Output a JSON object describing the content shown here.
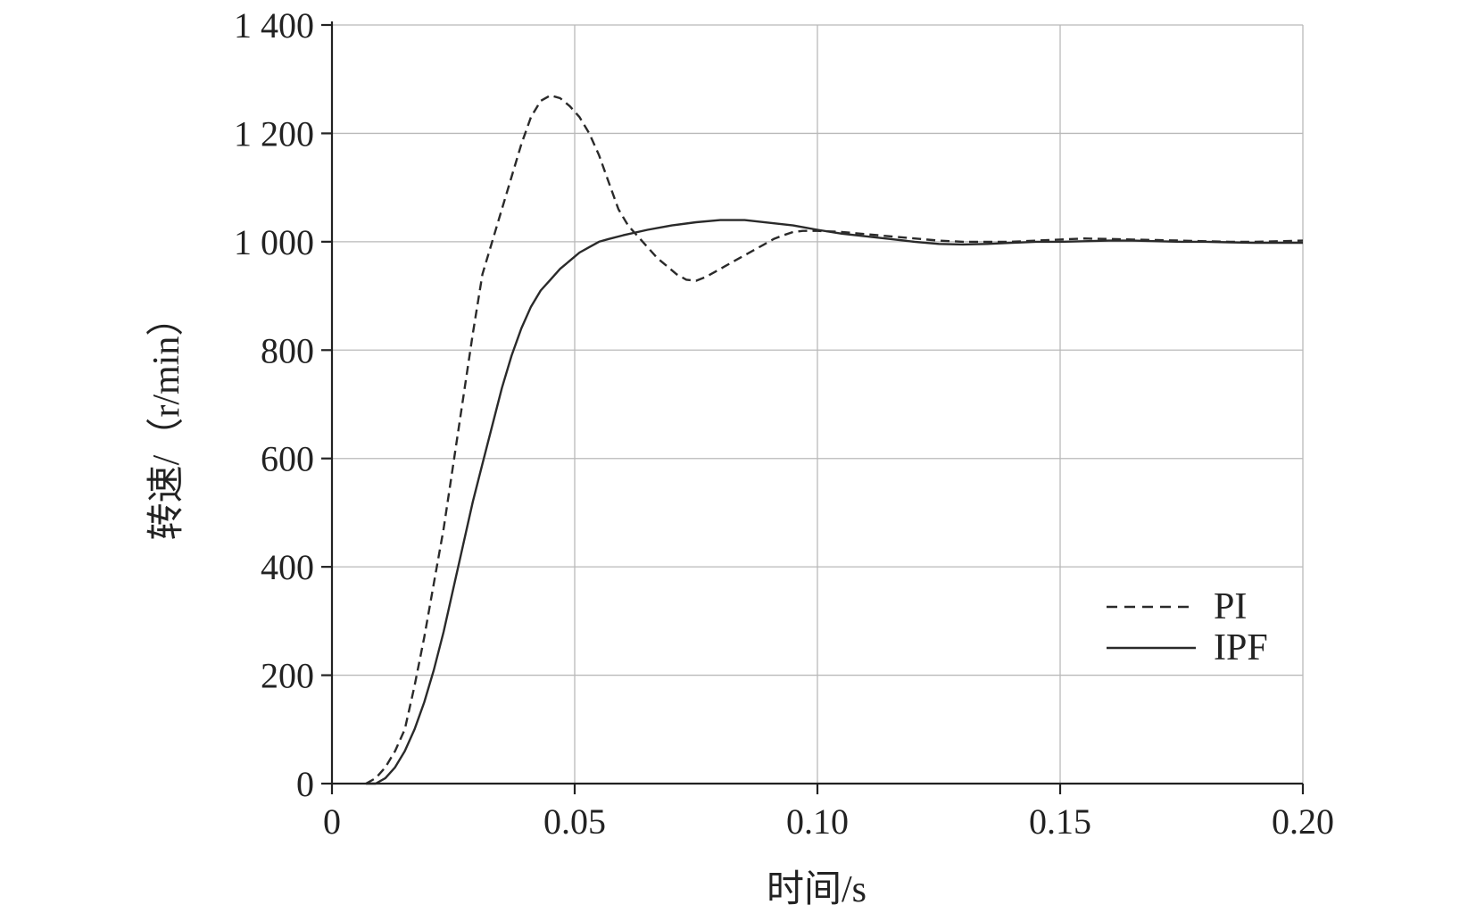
{
  "chart_data": {
    "type": "line",
    "xlabel": "时间/s",
    "ylabel": "转速/（r/min）",
    "xlim": [
      0,
      0.2
    ],
    "ylim": [
      0,
      1400
    ],
    "xticks": [
      0,
      0.05,
      0.1,
      0.15,
      0.2
    ],
    "xtick_labels": [
      "0",
      "0.05",
      "0.10",
      "0.15",
      "0.20"
    ],
    "yticks": [
      0,
      200,
      400,
      600,
      800,
      1000,
      1200,
      1400
    ],
    "ytick_labels": [
      "0",
      "200",
      "400",
      "600",
      "800",
      "1 000",
      "1 200",
      "1 400"
    ],
    "grid": true,
    "legend_position": "lower-right",
    "series": [
      {
        "name": "PI",
        "style": "dashed",
        "x": [
          0.007,
          0.009,
          0.011,
          0.013,
          0.015,
          0.017,
          0.019,
          0.021,
          0.023,
          0.025,
          0.027,
          0.029,
          0.031,
          0.033,
          0.035,
          0.037,
          0.039,
          0.041,
          0.043,
          0.045,
          0.047,
          0.049,
          0.051,
          0.053,
          0.055,
          0.057,
          0.059,
          0.061,
          0.063,
          0.065,
          0.067,
          0.069,
          0.071,
          0.073,
          0.075,
          0.077,
          0.079,
          0.081,
          0.083,
          0.085,
          0.087,
          0.089,
          0.091,
          0.093,
          0.095,
          0.097,
          0.1,
          0.105,
          0.11,
          0.115,
          0.12,
          0.125,
          0.13,
          0.135,
          0.14,
          0.145,
          0.15,
          0.155,
          0.16,
          0.165,
          0.17,
          0.175,
          0.18,
          0.185,
          0.19,
          0.195,
          0.2
        ],
        "y": [
          0,
          10,
          30,
          60,
          100,
          180,
          270,
          370,
          470,
          590,
          710,
          830,
          940,
          1000,
          1060,
          1120,
          1180,
          1230,
          1260,
          1270,
          1265,
          1250,
          1230,
          1200,
          1160,
          1110,
          1060,
          1030,
          1010,
          990,
          970,
          955,
          940,
          930,
          928,
          935,
          945,
          955,
          965,
          975,
          985,
          995,
          1005,
          1012,
          1018,
          1020,
          1020,
          1018,
          1014,
          1010,
          1006,
          1002,
          1000,
          1000,
          1000,
          1002,
          1004,
          1006,
          1005,
          1004,
          1003,
          1002,
          1001,
          1000,
          1000,
          1001,
          1002
        ]
      },
      {
        "name": "IPF",
        "style": "solid",
        "x": [
          0.007,
          0.009,
          0.011,
          0.013,
          0.015,
          0.017,
          0.019,
          0.021,
          0.023,
          0.025,
          0.027,
          0.029,
          0.031,
          0.033,
          0.035,
          0.037,
          0.039,
          0.041,
          0.043,
          0.045,
          0.047,
          0.049,
          0.051,
          0.053,
          0.055,
          0.057,
          0.06,
          0.065,
          0.07,
          0.075,
          0.08,
          0.085,
          0.09,
          0.095,
          0.1,
          0.105,
          0.11,
          0.115,
          0.12,
          0.125,
          0.13,
          0.135,
          0.14,
          0.145,
          0.15,
          0.155,
          0.16,
          0.165,
          0.17,
          0.175,
          0.18,
          0.185,
          0.19,
          0.195,
          0.2
        ],
        "y": [
          0,
          0,
          10,
          30,
          60,
          100,
          150,
          210,
          280,
          360,
          440,
          520,
          590,
          660,
          730,
          790,
          840,
          880,
          910,
          930,
          950,
          965,
          980,
          990,
          1000,
          1005,
          1012,
          1022,
          1030,
          1036,
          1040,
          1040,
          1035,
          1030,
          1022,
          1015,
          1010,
          1005,
          1000,
          996,
          995,
          996,
          998,
          1000,
          1000,
          1001,
          1002,
          1002,
          1001,
          1000,
          1000,
          999,
          998,
          998,
          998
        ]
      }
    ]
  }
}
